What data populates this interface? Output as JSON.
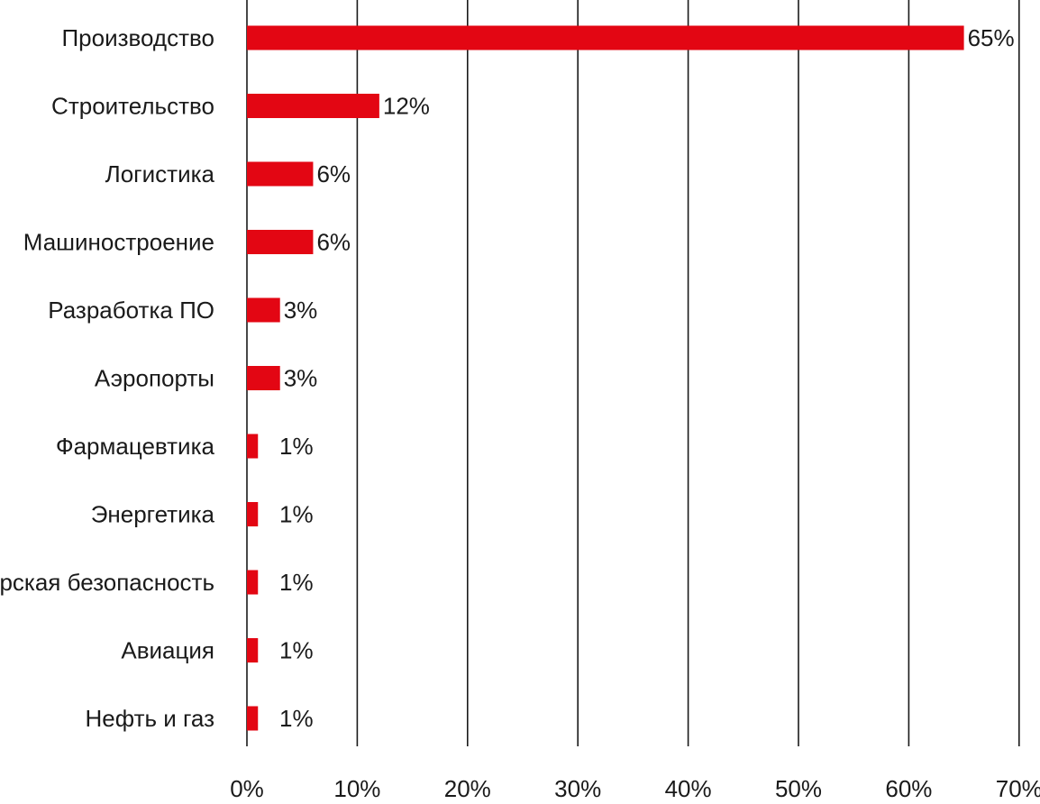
{
  "chart_data": {
    "type": "bar",
    "orientation": "horizontal",
    "categories": [
      "Производство",
      "Строительство",
      "Логистика",
      "Машиностроение",
      "Разработка ПО",
      "Аэропорты",
      "Фармацевтика",
      "Энергетика",
      "Морская безопасность",
      "Авиация",
      "Нефть и газ"
    ],
    "values": [
      65,
      12,
      6,
      6,
      3,
      3,
      1,
      1,
      1,
      1,
      1
    ],
    "value_labels": [
      "65%",
      "12%",
      "6%",
      "6%",
      "3%",
      "3%",
      "1%",
      "1%",
      "1%",
      "1%",
      "1%"
    ],
    "title": "",
    "xlabel": "",
    "ylabel": "",
    "xlim": [
      0,
      70
    ],
    "x_ticks": [
      0,
      10,
      20,
      30,
      40,
      50,
      60,
      70
    ],
    "x_tick_labels": [
      "0%",
      "10%",
      "20%",
      "30%",
      "40%",
      "50%",
      "60%",
      "70%"
    ],
    "grid": "vertical",
    "legend": "none",
    "colors": {
      "bar": "#e30613",
      "grid": "#1a1a1a",
      "text": "#1a1a1a"
    }
  }
}
